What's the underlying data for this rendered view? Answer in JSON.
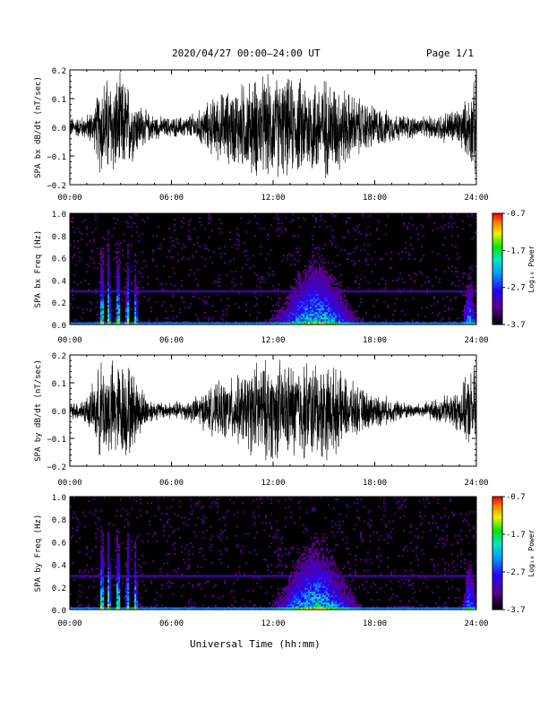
{
  "header": {
    "date": "2020/04/27",
    "time_range": "00:00–24:00 UT",
    "page": "Page 1/1"
  },
  "x_axis": {
    "title": "Universal Time (hh:mm)",
    "ticks": [
      "00:00",
      "06:00",
      "12:00",
      "18:00",
      "24:00"
    ]
  },
  "colorbar": {
    "label": "Log₁₀ Power",
    "ticks": [
      "-0.7",
      "-1.7",
      "-2.7",
      "-3.7"
    ],
    "range": [
      -3.7,
      -0.7
    ]
  },
  "chart_data": [
    {
      "type": "line",
      "id": "bx-waveform",
      "ylabel": "SPA bx dB/dt (nT/sec)",
      "xlim": [
        0,
        24
      ],
      "ylim": [
        -0.2,
        0.2
      ],
      "yticks": [
        "0.2",
        "0.1",
        "0.0",
        "−0.1",
        "−0.2"
      ],
      "envelope": {
        "x_hours": [
          0,
          0.5,
          1.0,
          1.5,
          1.8,
          2.2,
          2.6,
          3.0,
          3.4,
          3.8,
          4.2,
          4.6,
          5.0,
          5.5,
          6,
          6.5,
          7,
          7.5,
          8,
          8.5,
          9,
          9.5,
          10,
          10.5,
          11,
          11.5,
          12,
          12.5,
          13,
          13.5,
          14,
          14.5,
          15,
          15.5,
          16,
          16.5,
          17,
          17.5,
          18,
          18.5,
          19,
          19.5,
          20,
          20.5,
          21,
          21.5,
          22,
          22.5,
          23,
          23.5,
          24
        ],
        "amplitude": [
          0.04,
          0.04,
          0.05,
          0.09,
          0.2,
          0.2,
          0.2,
          0.2,
          0.18,
          0.12,
          0.09,
          0.06,
          0.05,
          0.04,
          0.04,
          0.04,
          0.05,
          0.06,
          0.09,
          0.12,
          0.14,
          0.15,
          0.17,
          0.18,
          0.2,
          0.2,
          0.2,
          0.2,
          0.19,
          0.19,
          0.2,
          0.2,
          0.2,
          0.19,
          0.17,
          0.14,
          0.12,
          0.1,
          0.09,
          0.07,
          0.06,
          0.05,
          0.05,
          0.04,
          0.04,
          0.05,
          0.06,
          0.07,
          0.08,
          0.12,
          0.2
        ]
      }
    },
    {
      "type": "heatmap",
      "id": "bx-spectrogram",
      "ylabel": "SPA bx Freq (Hz)",
      "xlim": [
        0,
        24
      ],
      "ylim": [
        0.0,
        1.0
      ],
      "yticks": [
        "1.0",
        "0.8",
        "0.6",
        "0.4",
        "0.2",
        "0.0"
      ],
      "colorbar_ref": "colorbar"
    },
    {
      "type": "line",
      "id": "by-waveform",
      "ylabel": "SPA by dB/dt (nT/sec)",
      "xlim": [
        0,
        24
      ],
      "ylim": [
        -0.2,
        0.2
      ],
      "yticks": [
        "0.2",
        "0.1",
        "0.0",
        "−0.1",
        "−0.2"
      ],
      "envelope": {
        "x_hours": [
          0,
          0.5,
          1.0,
          1.5,
          1.8,
          2.2,
          2.6,
          3.0,
          3.4,
          3.8,
          4.2,
          4.6,
          5.0,
          5.5,
          6,
          6.5,
          7,
          7.5,
          8,
          8.5,
          9,
          9.5,
          10,
          10.5,
          11,
          11.5,
          12,
          12.5,
          13,
          13.5,
          14,
          14.5,
          15,
          15.5,
          16,
          16.5,
          17,
          17.5,
          18,
          18.5,
          19,
          19.5,
          20,
          20.5,
          21,
          21.5,
          22,
          22.5,
          23,
          23.5,
          24
        ],
        "amplitude": [
          0.03,
          0.04,
          0.06,
          0.12,
          0.2,
          0.2,
          0.2,
          0.2,
          0.2,
          0.15,
          0.1,
          0.06,
          0.04,
          0.035,
          0.035,
          0.04,
          0.045,
          0.06,
          0.08,
          0.1,
          0.12,
          0.13,
          0.14,
          0.16,
          0.2,
          0.2,
          0.2,
          0.2,
          0.19,
          0.2,
          0.2,
          0.2,
          0.2,
          0.18,
          0.15,
          0.12,
          0.1,
          0.08,
          0.07,
          0.06,
          0.05,
          0.04,
          0.03,
          0.03,
          0.035,
          0.045,
          0.06,
          0.07,
          0.09,
          0.14,
          0.2
        ]
      }
    },
    {
      "type": "heatmap",
      "id": "by-spectrogram",
      "ylabel": "SPA by Freq (Hz)",
      "xlim": [
        0,
        24
      ],
      "ylim": [
        0.0,
        1.0
      ],
      "yticks": [
        "1.0",
        "0.8",
        "0.6",
        "0.4",
        "0.2",
        "0.0"
      ],
      "colorbar_ref": "colorbar"
    }
  ]
}
